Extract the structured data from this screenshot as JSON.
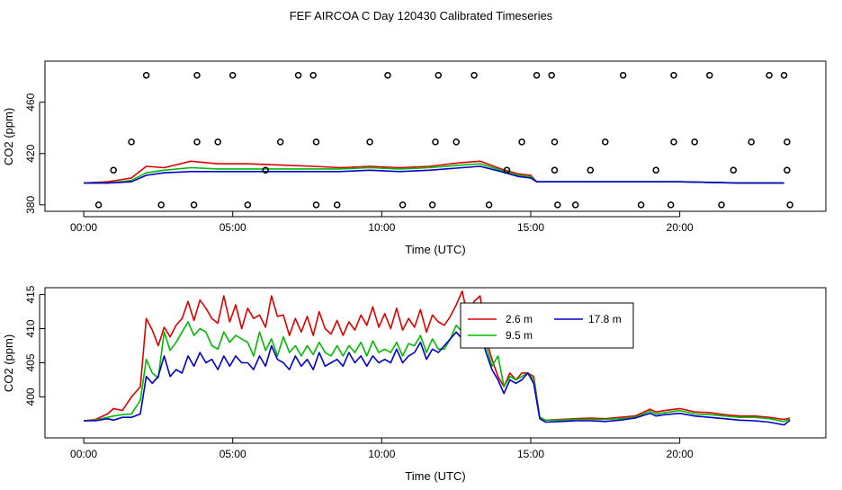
{
  "title": "FEF AIRCOA C  Day 120430  Calibrated Timeseries",
  "colors": {
    "red": "#dd0000",
    "green": "#00bb00",
    "blue": "#0000cc",
    "axis": "#000000"
  },
  "chart_data": [
    {
      "type": "scatter",
      "xlabel": "Time (UTC)",
      "ylabel": "CO2 (ppm)",
      "xlim": [
        -1.3,
        24.9
      ],
      "ylim": [
        375,
        492
      ],
      "xticks": [
        0,
        5,
        10,
        15,
        20
      ],
      "xtick_labels": [
        "00:00",
        "05:00",
        "10:00",
        "15:00",
        "20:00"
      ],
      "yticks": [
        380,
        420,
        460
      ],
      "ytick_labels": [
        "380",
        "420",
        "460"
      ],
      "lines": [
        {
          "name": "2.6 m",
          "color": "#dd0000",
          "x": [
            0,
            0.8,
            1.6,
            2.1,
            2.7,
            3.6,
            4.5,
            5.5,
            6.6,
            7.7,
            8.6,
            9.6,
            10.6,
            11.6,
            12.7,
            13.3,
            14.0,
            14.6,
            15.0,
            15.2,
            16.0,
            18.0,
            20.0,
            22.0,
            23.5
          ],
          "y": [
            397,
            398,
            401,
            410,
            409,
            414,
            412,
            412,
            411,
            410,
            409,
            410,
            409,
            410,
            413,
            414,
            408,
            404,
            403,
            398,
            398,
            398,
            398,
            397,
            397
          ]
        },
        {
          "name": "9.5 m",
          "color": "#00bb00",
          "x": [
            0,
            0.8,
            1.6,
            2.1,
            2.7,
            3.6,
            4.5,
            5.5,
            6.6,
            7.7,
            8.6,
            9.6,
            10.6,
            11.6,
            12.7,
            13.3,
            14.0,
            14.6,
            15.0,
            15.2,
            16.0,
            18.0,
            20.0,
            22.0,
            23.5
          ],
          "y": [
            397,
            397,
            399,
            405,
            407,
            409,
            408,
            408,
            408,
            408,
            408,
            409,
            408,
            409,
            411,
            412,
            407,
            403,
            402,
            398,
            398,
            398,
            398,
            397,
            397
          ]
        },
        {
          "name": "17.8 m",
          "color": "#0000cc",
          "x": [
            0,
            0.8,
            1.6,
            2.1,
            2.7,
            3.6,
            4.5,
            5.5,
            6.6,
            7.7,
            8.6,
            9.6,
            10.6,
            11.6,
            12.7,
            13.3,
            14.0,
            14.6,
            15.0,
            15.2,
            16.0,
            18.0,
            20.0,
            22.0,
            23.5
          ],
          "y": [
            397,
            397,
            398,
            403,
            405,
            406,
            406,
            406,
            406,
            406,
            406,
            407,
            406,
            407,
            409,
            410,
            406,
            402,
            401,
            398,
            398,
            398,
            398,
            397,
            397
          ]
        }
      ],
      "points": {
        "x": [
          0.5,
          1.0,
          1.6,
          2.1,
          2.6,
          3.7,
          3.8,
          3.8,
          4.5,
          5.0,
          5.5,
          6.1,
          6.6,
          7.2,
          7.7,
          7.8,
          7.8,
          8.5,
          9.6,
          10.2,
          10.7,
          11.7,
          11.8,
          11.9,
          12.5,
          13.1,
          13.6,
          14.2,
          14.7,
          15.2,
          15.7,
          15.8,
          15.8,
          15.9,
          16.5,
          17.0,
          17.5,
          18.1,
          18.7,
          19.2,
          19.7,
          19.8,
          19.8,
          20.5,
          21.0,
          21.4,
          21.8,
          22.4,
          23.0,
          23.5,
          23.6,
          23.6,
          23.7
        ],
        "y": [
          380,
          407,
          429,
          481,
          380,
          380,
          429,
          481,
          429,
          481,
          380,
          407,
          429,
          481,
          481,
          429,
          380,
          380,
          429,
          481,
          380,
          380,
          429,
          481,
          429,
          481,
          380,
          407,
          429,
          481,
          481,
          429,
          407,
          380,
          380,
          407,
          429,
          481,
          380,
          407,
          380,
          429,
          481,
          429,
          481,
          380,
          407,
          429,
          481,
          481,
          429,
          407,
          380
        ]
      }
    },
    {
      "type": "line",
      "xlabel": "Time (UTC)",
      "ylabel": "CO2 (ppm)",
      "xlim": [
        -1.3,
        24.9
      ],
      "ylim": [
        394,
        416
      ],
      "xticks": [
        0,
        5,
        10,
        15,
        20
      ],
      "xtick_labels": [
        "00:00",
        "05:00",
        "10:00",
        "15:00",
        "20:00"
      ],
      "yticks": [
        400,
        405,
        410,
        415
      ],
      "ytick_labels": [
        "400",
        "405",
        "410",
        "415"
      ],
      "legend": {
        "position": "top-right",
        "entries": [
          "2.6 m",
          "9.5 m",
          "17.8 m"
        ]
      },
      "series": [
        {
          "name": "2.6 m",
          "color": "#dd0000",
          "x": [
            0,
            0.4,
            0.8,
            1.0,
            1.3,
            1.6,
            1.9,
            2.1,
            2.3,
            2.5,
            2.7,
            2.9,
            3.1,
            3.3,
            3.5,
            3.7,
            3.9,
            4.1,
            4.3,
            4.5,
            4.7,
            4.9,
            5.1,
            5.3,
            5.5,
            5.7,
            5.9,
            6.1,
            6.3,
            6.5,
            6.7,
            6.9,
            7.1,
            7.3,
            7.5,
            7.7,
            7.9,
            8.1,
            8.3,
            8.5,
            8.7,
            8.9,
            9.1,
            9.3,
            9.5,
            9.7,
            9.9,
            10.1,
            10.3,
            10.5,
            10.7,
            10.9,
            11.1,
            11.3,
            11.5,
            11.7,
            11.9,
            12.1,
            12.3,
            12.5,
            12.7,
            12.9,
            13.1,
            13.3,
            13.5,
            13.7,
            13.9,
            14.1,
            14.3,
            14.5,
            14.7,
            14.9,
            15.1,
            15.3,
            15.5,
            16.0,
            16.5,
            17.0,
            17.5,
            18.0,
            18.5,
            19.0,
            19.2,
            19.5,
            20.0,
            20.5,
            21.0,
            21.5,
            22.0,
            22.5,
            23.0,
            23.5,
            23.7
          ],
          "y": [
            396.5,
            396.7,
            397.5,
            398.3,
            398.0,
            400.0,
            401.5,
            411.5,
            409.8,
            407.5,
            410.2,
            408.8,
            410.5,
            411.5,
            414.0,
            411.2,
            414.2,
            413.0,
            411.5,
            410.8,
            414.8,
            411.0,
            413.5,
            410.0,
            413.0,
            411.5,
            412.0,
            410.2,
            414.8,
            411.8,
            412.0,
            409.0,
            411.5,
            409.5,
            411.8,
            409.0,
            412.5,
            410.0,
            409.2,
            411.2,
            409.0,
            411.0,
            409.8,
            412.0,
            410.5,
            413.2,
            410.2,
            412.2,
            410.0,
            413.0,
            409.8,
            411.5,
            410.2,
            412.8,
            409.5,
            412.0,
            411.0,
            410.5,
            411.8,
            413.5,
            415.5,
            411.5,
            414.0,
            414.8,
            408.5,
            405.5,
            403.0,
            401.5,
            403.5,
            402.5,
            403.5,
            403.5,
            403.0,
            397.0,
            396.6,
            396.7,
            396.8,
            396.9,
            396.8,
            397.0,
            397.2,
            398.2,
            397.8,
            398.0,
            398.3,
            397.8,
            397.7,
            397.4,
            397.2,
            397.2,
            397.0,
            396.7,
            396.9
          ]
        },
        {
          "name": "9.5 m",
          "color": "#00bb00",
          "x": [
            0,
            0.4,
            0.8,
            1.0,
            1.3,
            1.6,
            1.9,
            2.1,
            2.3,
            2.5,
            2.7,
            2.9,
            3.1,
            3.3,
            3.5,
            3.7,
            3.9,
            4.1,
            4.3,
            4.5,
            4.7,
            4.9,
            5.1,
            5.3,
            5.5,
            5.7,
            5.9,
            6.1,
            6.3,
            6.5,
            6.7,
            6.9,
            7.1,
            7.3,
            7.5,
            7.7,
            7.9,
            8.1,
            8.3,
            8.5,
            8.7,
            8.9,
            9.1,
            9.3,
            9.5,
            9.7,
            9.9,
            10.1,
            10.3,
            10.5,
            10.7,
            10.9,
            11.1,
            11.3,
            11.5,
            11.7,
            11.9,
            12.1,
            12.3,
            12.5,
            12.7,
            12.9,
            13.1,
            13.3,
            13.5,
            13.7,
            13.9,
            14.1,
            14.3,
            14.5,
            14.7,
            14.9,
            15.1,
            15.3,
            15.5,
            16.0,
            16.5,
            17.0,
            17.5,
            18.0,
            18.5,
            19.0,
            19.2,
            19.5,
            20.0,
            20.5,
            21.0,
            21.5,
            22.0,
            22.5,
            23.0,
            23.5,
            23.7
          ],
          "y": [
            396.5,
            396.6,
            397.0,
            397.2,
            397.4,
            397.5,
            399.5,
            405.5,
            403.5,
            402.8,
            409.5,
            406.8,
            408.0,
            409.5,
            411.0,
            409.0,
            410.0,
            409.5,
            407.5,
            407.0,
            409.5,
            408.0,
            409.0,
            408.5,
            408.0,
            406.0,
            409.5,
            406.8,
            408.5,
            406.0,
            408.8,
            406.5,
            407.5,
            406.0,
            407.5,
            406.2,
            408.0,
            406.5,
            406.0,
            407.5,
            406.0,
            407.5,
            406.5,
            408.0,
            406.0,
            408.2,
            406.5,
            407.0,
            406.5,
            408.0,
            406.0,
            407.8,
            407.5,
            409.0,
            406.5,
            408.5,
            407.0,
            407.0,
            408.5,
            410.5,
            409.5,
            408.0,
            411.0,
            412.5,
            407.5,
            404.5,
            406.0,
            401.5,
            403.0,
            402.5,
            403.0,
            403.5,
            402.5,
            397.0,
            396.6,
            396.6,
            396.7,
            396.7,
            396.7,
            396.8,
            397.0,
            397.9,
            397.5,
            397.7,
            398.0,
            397.5,
            397.4,
            397.2,
            397.0,
            397.0,
            396.8,
            396.4,
            396.8
          ]
        },
        {
          "name": "17.8 m",
          "color": "#0000cc",
          "x": [
            0,
            0.4,
            0.8,
            1.0,
            1.3,
            1.6,
            1.9,
            2.1,
            2.3,
            2.5,
            2.7,
            2.9,
            3.1,
            3.3,
            3.5,
            3.7,
            3.9,
            4.1,
            4.3,
            4.5,
            4.7,
            4.9,
            5.1,
            5.3,
            5.5,
            5.7,
            5.9,
            6.1,
            6.3,
            6.5,
            6.7,
            6.9,
            7.1,
            7.3,
            7.5,
            7.7,
            7.9,
            8.1,
            8.3,
            8.5,
            8.7,
            8.9,
            9.1,
            9.3,
            9.5,
            9.7,
            9.9,
            10.1,
            10.3,
            10.5,
            10.7,
            10.9,
            11.1,
            11.3,
            11.5,
            11.7,
            11.9,
            12.1,
            12.3,
            12.5,
            12.7,
            12.9,
            13.1,
            13.3,
            13.5,
            13.7,
            13.9,
            14.1,
            14.3,
            14.5,
            14.7,
            14.9,
            15.1,
            15.3,
            15.5,
            16.0,
            16.5,
            17.0,
            17.5,
            18.0,
            18.5,
            19.0,
            19.2,
            19.5,
            20.0,
            20.5,
            21.0,
            21.5,
            22.0,
            22.5,
            23.0,
            23.5,
            23.7
          ],
          "y": [
            396.5,
            396.5,
            396.8,
            396.6,
            397.0,
            397.0,
            397.5,
            403.0,
            402.0,
            403.0,
            406.0,
            403.0,
            404.0,
            403.5,
            406.0,
            404.5,
            406.5,
            405.0,
            405.5,
            404.0,
            406.0,
            404.5,
            406.0,
            405.0,
            405.0,
            404.0,
            406.0,
            404.5,
            407.5,
            405.5,
            405.0,
            404.0,
            406.0,
            404.5,
            405.5,
            404.0,
            406.5,
            404.5,
            405.0,
            405.5,
            404.5,
            406.5,
            405.0,
            406.0,
            404.5,
            406.0,
            405.0,
            405.5,
            405.0,
            407.0,
            405.0,
            406.0,
            406.5,
            408.0,
            405.5,
            407.0,
            406.5,
            407.5,
            408.5,
            409.5,
            408.5,
            409.0,
            410.0,
            409.5,
            406.5,
            404.0,
            402.5,
            400.5,
            402.5,
            402.0,
            402.5,
            403.5,
            402.0,
            396.8,
            396.3,
            396.4,
            396.5,
            396.5,
            396.4,
            396.6,
            396.9,
            397.6,
            397.2,
            397.4,
            397.6,
            397.2,
            397.0,
            396.8,
            396.6,
            396.5,
            396.3,
            395.9,
            396.6
          ]
        }
      ]
    }
  ]
}
